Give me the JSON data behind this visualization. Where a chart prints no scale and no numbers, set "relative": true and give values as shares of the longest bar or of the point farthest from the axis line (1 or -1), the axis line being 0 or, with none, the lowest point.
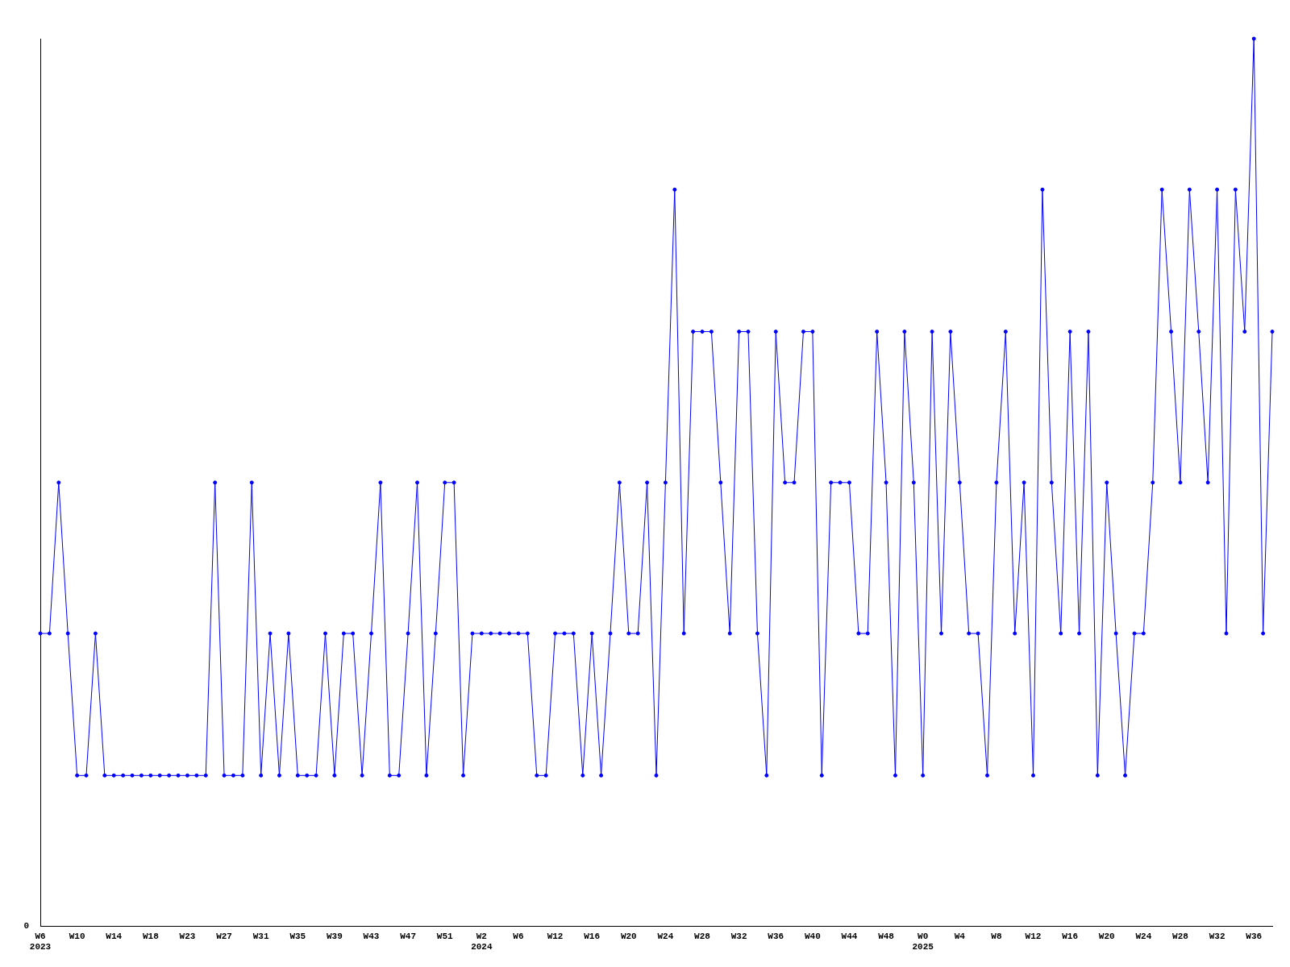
{
  "chart_data": {
    "type": "line",
    "relative": true,
    "marker": "circle",
    "line_style": "solid",
    "grid": false,
    "legend": false,
    "annotations": [
      "0"
    ],
    "categories": [
      "W6\n2023",
      null,
      null,
      null,
      "W10",
      null,
      null,
      null,
      "W14",
      null,
      null,
      null,
      "W18",
      null,
      null,
      null,
      "W23",
      null,
      null,
      null,
      "W27",
      null,
      null,
      null,
      "W31",
      null,
      null,
      null,
      "W35",
      null,
      null,
      null,
      "W39",
      null,
      null,
      null,
      "W43",
      null,
      null,
      null,
      "W47",
      null,
      null,
      null,
      "W51",
      null,
      null,
      null,
      "W2\n2024",
      null,
      null,
      null,
      "W6",
      null,
      null,
      null,
      "W12",
      null,
      null,
      null,
      "W16",
      null,
      null,
      null,
      "W20",
      null,
      null,
      null,
      "W24",
      null,
      null,
      null,
      "W28",
      null,
      null,
      null,
      "W32",
      null,
      null,
      null,
      "W36",
      null,
      null,
      null,
      "W40",
      null,
      null,
      null,
      "W44",
      null,
      null,
      null,
      "W48",
      null,
      null,
      null,
      "W0\n2025",
      null,
      null,
      null,
      "W4",
      null,
      null,
      null,
      "W8",
      null,
      null,
      null,
      "W12",
      null,
      null,
      null,
      "W16",
      null,
      null,
      null,
      "W20",
      null,
      null,
      null,
      "W24",
      null,
      null,
      null,
      "W28",
      null,
      null,
      null,
      "W32",
      null,
      null,
      null,
      "W36",
      null,
      null
    ],
    "series": [
      {
        "color": "#0000ff",
        "values": [
          0.33,
          0.33,
          0.5,
          0.33,
          0.17,
          0.17,
          0.33,
          0.17,
          0.17,
          0.17,
          0.17,
          0.17,
          0.17,
          0.17,
          0.17,
          0.17,
          0.17,
          0.17,
          0.17,
          0.5,
          0.17,
          0.17,
          0.17,
          0.5,
          0.17,
          0.33,
          0.17,
          0.33,
          0.17,
          0.17,
          0.17,
          0.33,
          0.17,
          0.33,
          0.33,
          0.17,
          0.33,
          0.5,
          0.17,
          0.17,
          0.33,
          0.5,
          0.17,
          0.33,
          0.5,
          0.5,
          0.17,
          0.33,
          0.33,
          0.33,
          0.33,
          0.33,
          0.33,
          0.33,
          0.17,
          0.17,
          0.33,
          0.33,
          0.33,
          0.17,
          0.33,
          0.17,
          0.33,
          0.5,
          0.33,
          0.33,
          0.5,
          0.17,
          0.5,
          0.83,
          0.33,
          0.67,
          0.67,
          0.67,
          0.5,
          0.33,
          0.67,
          0.67,
          0.33,
          0.17,
          0.67,
          0.5,
          0.5,
          0.67,
          0.67,
          0.17,
          0.5,
          0.5,
          0.5,
          0.33,
          0.33,
          0.67,
          0.5,
          0.17,
          0.67,
          0.5,
          0.17,
          0.67,
          0.33,
          0.67,
          0.5,
          0.33,
          0.33,
          0.17,
          0.5,
          0.67,
          0.33,
          0.5,
          0.17,
          0.83,
          0.5,
          0.33,
          0.67,
          0.33,
          0.67,
          0.17,
          0.5,
          0.33,
          0.17,
          0.33,
          0.33,
          0.5,
          0.83,
          0.67,
          0.5,
          0.83,
          0.67,
          0.5,
          0.83,
          0.33,
          0.83,
          0.67,
          1,
          0.33,
          0.67
        ]
      }
    ]
  }
}
